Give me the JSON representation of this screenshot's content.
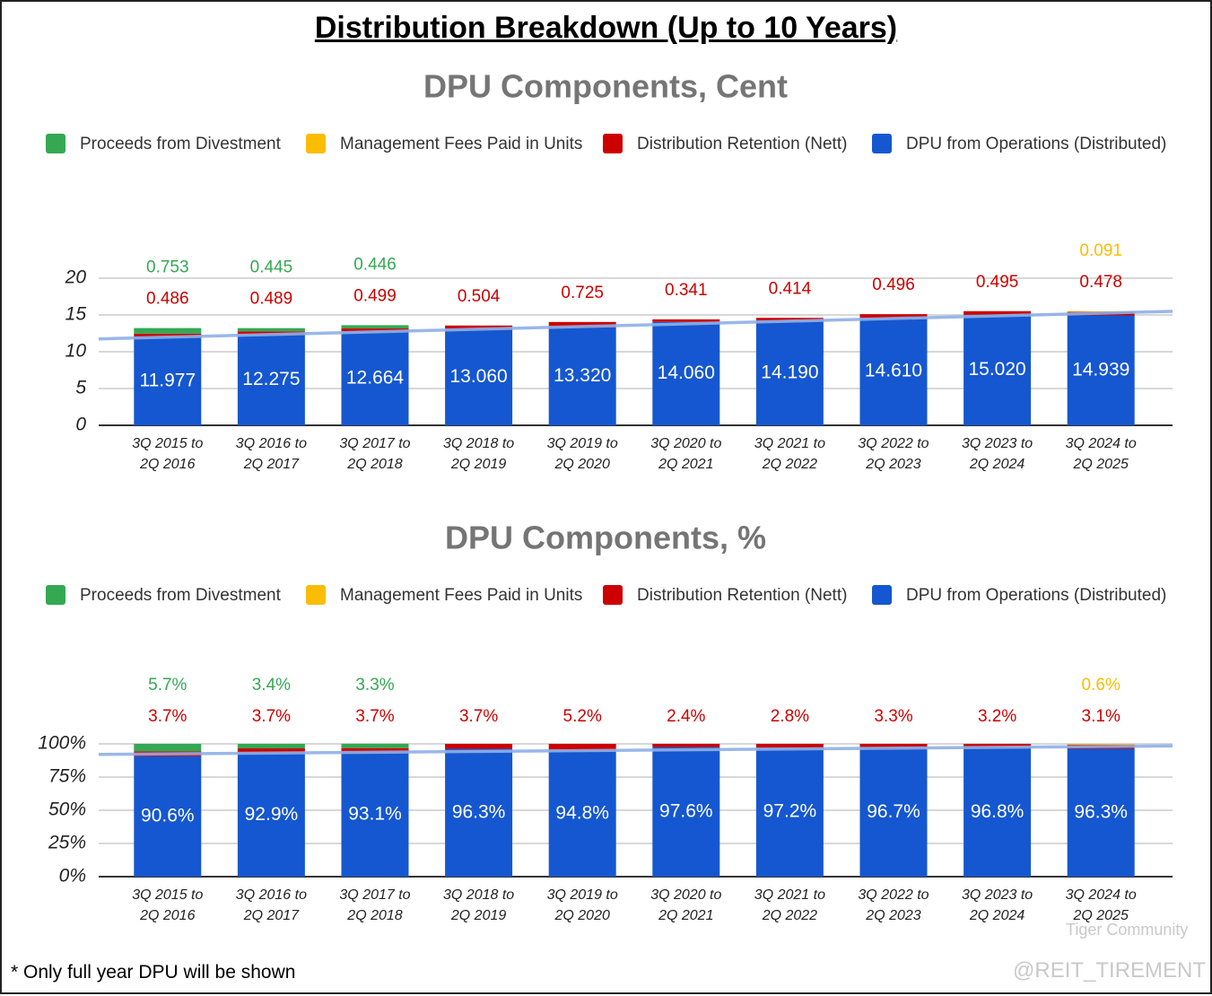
{
  "title": "Distribution Breakdown (Up to 10 Years)",
  "footnote": "* Only full year DPU will be shown",
  "watermark": {
    "brand": "Tiger Community",
    "handle": "@REIT_TIREMENT"
  },
  "chart_data": [
    {
      "type": "bar",
      "stacked": true,
      "title": "DPU Components, Cent",
      "grid": true,
      "trendline": true,
      "categories": [
        "3Q 2015 to 2Q 2016",
        "3Q 2016 to 2Q 2017",
        "3Q 2017 to 2Q 2018",
        "3Q 2018 to 2Q 2019",
        "3Q 2019 to 2Q 2020",
        "3Q 2020 to 2Q 2021",
        "3Q 2021 to 2Q 2022",
        "3Q 2022 to 2Q 2023",
        "3Q 2023 to 2Q 2024",
        "3Q 2024 to 2Q 2025"
      ],
      "ylim": [
        0,
        20
      ],
      "yticks": [
        0,
        5,
        10,
        15,
        20
      ],
      "series": [
        {
          "name": "Proceeds from Divestment",
          "color": "#34a853",
          "values": [
            0.753,
            0.445,
            0.446,
            null,
            null,
            null,
            null,
            null,
            null,
            null
          ]
        },
        {
          "name": "Management Fees Paid in Units",
          "color": "#fbbc04",
          "values": [
            null,
            null,
            null,
            null,
            null,
            null,
            null,
            null,
            null,
            0.091
          ]
        },
        {
          "name": "Distribution Retention (Nett)",
          "color": "#cc0000",
          "values": [
            0.486,
            0.489,
            0.499,
            0.504,
            0.725,
            0.341,
            0.414,
            0.496,
            0.495,
            0.478
          ]
        },
        {
          "name": "DPU from Operations (Distributed)",
          "color": "#1557d0",
          "values": [
            11.977,
            12.275,
            12.664,
            13.06,
            13.32,
            14.06,
            14.19,
            14.61,
            15.02,
            14.939
          ],
          "value_labels": [
            "11.977",
            "12.275",
            "12.664",
            "13.060",
            "13.320",
            "14.060",
            "14.190",
            "14.610",
            "15.020",
            "14.939"
          ]
        }
      ]
    },
    {
      "type": "bar",
      "stacked": true,
      "title": "DPU Components, %",
      "grid": true,
      "trendline": true,
      "categories": [
        "3Q 2015 to 2Q 2016",
        "3Q 2016 to 2Q 2017",
        "3Q 2017 to 2Q 2018",
        "3Q 2018 to 2Q 2019",
        "3Q 2019 to 2Q 2020",
        "3Q 2020 to 2Q 2021",
        "3Q 2021 to 2Q 2022",
        "3Q 2022 to 2Q 2023",
        "3Q 2023 to 2Q 2024",
        "3Q 2024 to 2Q 2025"
      ],
      "ylim": [
        0,
        100
      ],
      "yticks": [
        {
          "value": 0,
          "label": "0%"
        },
        {
          "value": 25,
          "label": "25%"
        },
        {
          "value": 50,
          "label": "50%"
        },
        {
          "value": 75,
          "label": "75%"
        },
        {
          "value": 100,
          "label": "100%"
        }
      ],
      "series": [
        {
          "name": "Proceeds from Divestment",
          "color": "#34a853",
          "values": [
            5.7,
            3.4,
            3.3,
            null,
            null,
            null,
            null,
            null,
            null,
            null
          ],
          "value_labels": [
            "5.7%",
            "3.4%",
            "3.3%",
            null,
            null,
            null,
            null,
            null,
            null,
            null
          ]
        },
        {
          "name": "Management Fees Paid in Units",
          "color": "#fbbc04",
          "values": [
            null,
            null,
            null,
            null,
            null,
            null,
            null,
            null,
            null,
            0.6
          ],
          "value_labels": [
            null,
            null,
            null,
            null,
            null,
            null,
            null,
            null,
            null,
            "0.6%"
          ]
        },
        {
          "name": "Distribution Retention (Nett)",
          "color": "#cc0000",
          "values": [
            3.7,
            3.7,
            3.7,
            3.7,
            5.2,
            2.4,
            2.8,
            3.3,
            3.2,
            3.1
          ],
          "value_labels": [
            "3.7%",
            "3.7%",
            "3.7%",
            "3.7%",
            "5.2%",
            "2.4%",
            "2.8%",
            "3.3%",
            "3.2%",
            "3.1%"
          ]
        },
        {
          "name": "DPU from Operations (Distributed)",
          "color": "#1557d0",
          "values": [
            90.6,
            92.9,
            93.1,
            96.3,
            94.8,
            97.6,
            97.2,
            96.7,
            96.8,
            96.3
          ],
          "value_labels": [
            "90.6%",
            "92.9%",
            "93.1%",
            "96.3%",
            "94.8%",
            "97.6%",
            "97.2%",
            "96.7%",
            "96.8%",
            "96.3%"
          ]
        }
      ]
    }
  ]
}
